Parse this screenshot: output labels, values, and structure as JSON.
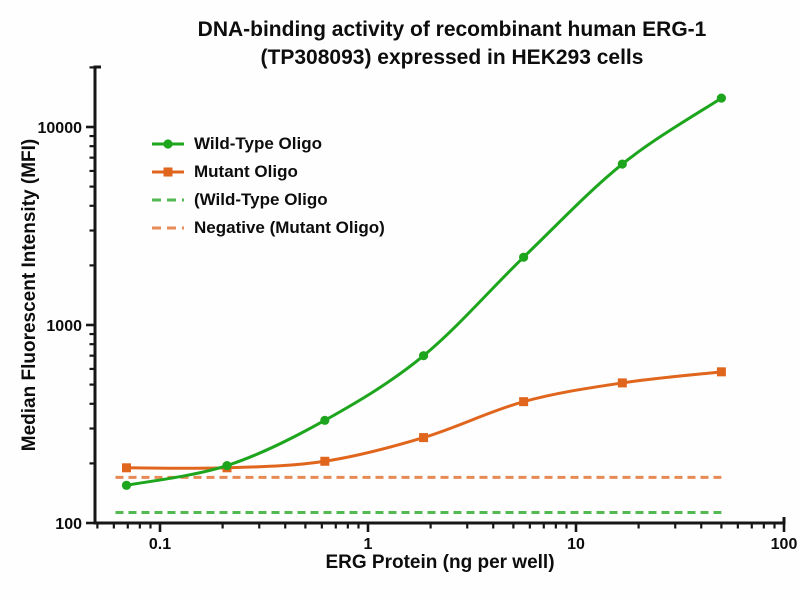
{
  "title": {
    "line1": "DNA-binding activity of recombinant human ERG-1",
    "line2": "(TP308093) expressed in HEK293 cells"
  },
  "chart_data": {
    "type": "line",
    "xlabel": "ERG Protein (ng per well)",
    "ylabel": "Median Fluorescent Intensity  (MFI)",
    "x_scale": "log",
    "y_scale": "log",
    "x_ticks": [
      0.1,
      1,
      10,
      100
    ],
    "y_ticks": [
      100,
      1000,
      10000
    ],
    "x_range": [
      0.05,
      100
    ],
    "y_range": [
      100,
      20000
    ],
    "grid": false,
    "legend_position": "upper-left",
    "x": [
      0.069,
      0.21,
      0.62,
      1.85,
      5.6,
      16.7,
      50
    ],
    "series": [
      {
        "name": "Wild-Type Oligo",
        "kind": "curve",
        "color": "#1ea51e",
        "marker": "circle",
        "line": "solid",
        "values": [
          155,
          195,
          330,
          700,
          2200,
          6500,
          14000
        ]
      },
      {
        "name": "Mutant Oligo",
        "kind": "curve",
        "color": "#e0661e",
        "marker": "square",
        "line": "solid",
        "values": [
          190,
          190,
          205,
          270,
          410,
          510,
          580
        ]
      },
      {
        "name": "(Wild-Type Oligo",
        "kind": "baseline",
        "color": "#53ba53",
        "marker": "none",
        "line": "dashed",
        "constant": 113
      },
      {
        "name": "Negative (Mutant Oligo)",
        "kind": "baseline",
        "color": "#e78a55",
        "marker": "none",
        "line": "dashed",
        "constant": 170
      }
    ]
  },
  "colors": {
    "axis": "#161616",
    "wild_type": "#1ea51e",
    "mutant": "#e0661e",
    "wild_type_dashed": "#53ba53",
    "negative_dashed": "#e78a55"
  }
}
